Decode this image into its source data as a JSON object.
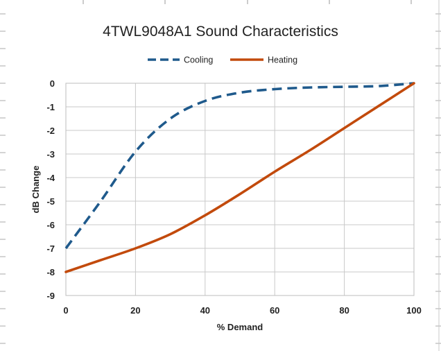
{
  "chart_data": {
    "type": "line",
    "title": "4TWL9048A1 Sound Characteristics",
    "xlabel": "% Demand",
    "ylabel": "dB Change",
    "xlim": [
      0,
      100
    ],
    "ylim": [
      -9,
      0
    ],
    "x_ticks": [
      "0",
      "20",
      "40",
      "60",
      "80",
      "100"
    ],
    "y_ticks": [
      "0",
      "-1",
      "-2",
      "-3",
      "-4",
      "-5",
      "-6",
      "-7",
      "-8",
      "-9"
    ],
    "grid": true,
    "legend_position": "top",
    "series": [
      {
        "name": "Cooling",
        "color": "#1f5a8c",
        "style": "dashed",
        "x": [
          0,
          10,
          20,
          30,
          40,
          50,
          60,
          70,
          80,
          90,
          100
        ],
        "y": [
          -7,
          -5,
          -2.9,
          -1.5,
          -0.75,
          -0.4,
          -0.25,
          -0.18,
          -0.15,
          -0.12,
          0
        ]
      },
      {
        "name": "Heating",
        "color": "#c24a0c",
        "style": "solid",
        "x": [
          0,
          10,
          20,
          30,
          40,
          50,
          60,
          70,
          80,
          90,
          100
        ],
        "y": [
          -8,
          -7.5,
          -7,
          -6.4,
          -5.6,
          -4.7,
          -3.75,
          -2.85,
          -1.9,
          -0.95,
          0
        ]
      }
    ]
  }
}
